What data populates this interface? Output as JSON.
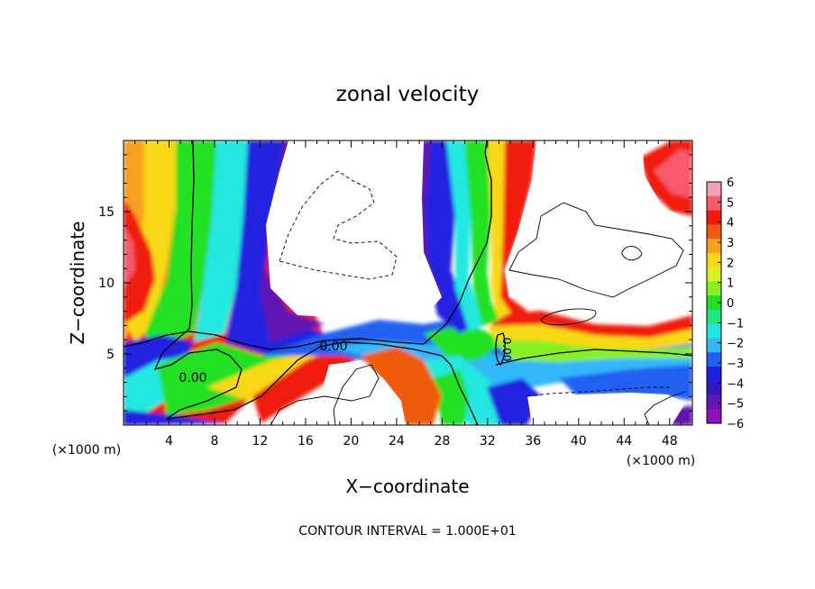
{
  "chart_data": {
    "type": "heatmap",
    "title": "zonal velocity",
    "xlabel": "X−coordinate",
    "ylabel": "Z−coordinate",
    "x_unit_label": "(×1000 m)",
    "z_unit_label": "(×1000 m)",
    "xlim": [
      0,
      50
    ],
    "ylim": [
      0,
      20
    ],
    "x_ticks": [
      4,
      8,
      12,
      16,
      20,
      24,
      28,
      32,
      36,
      40,
      44,
      48
    ],
    "y_ticks": [
      5,
      10,
      15
    ],
    "colorbar": {
      "ticks": [
        "6",
        "5",
        "4",
        "3",
        "2",
        "1",
        "0",
        "−1",
        "−2",
        "−3",
        "−4",
        "−5",
        "−6"
      ],
      "range": [
        -6,
        6
      ],
      "colors": [
        "#f4a0b4",
        "#f75a6a",
        "#f01a10",
        "#f05a10",
        "#f8a020",
        "#f8d818",
        "#d8f020",
        "#88f020",
        "#20e020",
        "#20e880",
        "#20e8e0",
        "#30b8f8",
        "#2060f0",
        "#2020e0",
        "#3018c0",
        "#6018b0",
        "#9010c0"
      ]
    },
    "contour_label": "0.00",
    "footer": "CONTOUR INTERVAL = 1.000E+01"
  }
}
